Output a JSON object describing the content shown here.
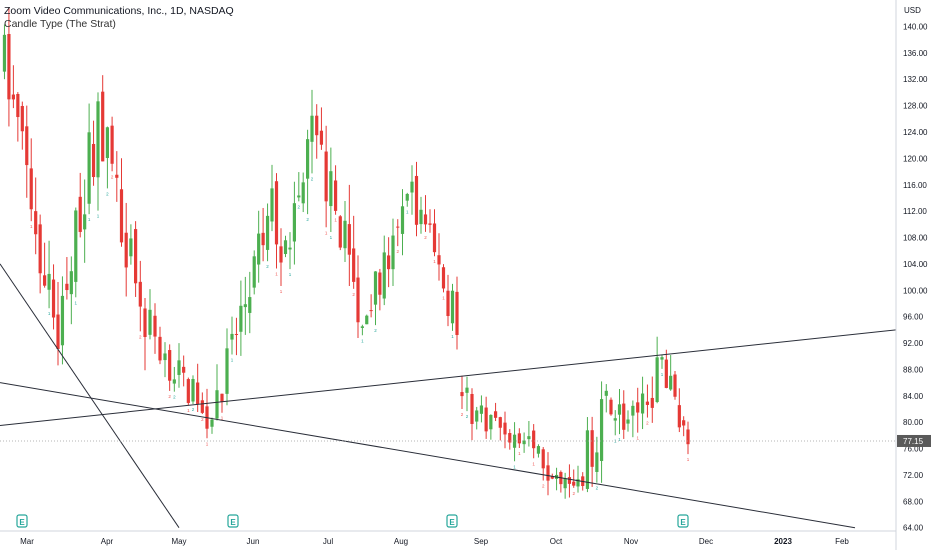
{
  "symbol": {
    "title": "Zoom Video Communications, Inc., 1D, NASDAQ",
    "candle_type": "Candle Type (The Strat)"
  },
  "colors": {
    "up": "#26a69a",
    "down": "#ef5350",
    "up_body": "#4caf50",
    "down_body": "#e53935",
    "line": "#2a2e39",
    "grid": "#ffffff",
    "price_tag": "#5a5a5a"
  },
  "chart_data": {
    "type": "candlestick",
    "title": "Zoom Video Communications, Inc., 1D, NASDAQ",
    "y_axis": {
      "unit": "USD",
      "ticks": [
        140,
        136,
        132,
        128,
        124,
        120,
        116,
        112,
        108,
        104,
        100,
        96,
        92,
        88,
        84,
        80,
        76,
        72,
        68,
        64
      ],
      "range": [
        63.5,
        142.5
      ],
      "position": "right"
    },
    "x_axis": {
      "ticks": [
        "Mar",
        "Apr",
        "May",
        "Jun",
        "Jul",
        "Aug",
        "Sep",
        "Oct",
        "Nov",
        "Dec",
        "2023",
        "Feb"
      ]
    },
    "last_price": "77.15",
    "earnings_markers": [
      "Feb",
      "May",
      "Aug",
      "Nov"
    ],
    "trendlines": [
      {
        "from": [
          "Feb",
          104.0
        ],
        "to": [
          "May",
          64.0
        ]
      },
      {
        "from": [
          "Feb",
          86.0
        ],
        "to": [
          "Feb 2023",
          64.0
        ]
      },
      {
        "from": [
          "Feb",
          79.5
        ],
        "to": [
          "Dec 2022",
          94.0
        ]
      }
    ],
    "segments": [
      {
        "from": "Feb",
        "to": "mid-Mar",
        "start": 137.5,
        "end": 94.0
      },
      {
        "from": "mid-Mar",
        "to": "late Mar",
        "start": 94.0,
        "end": 126.5
      },
      {
        "from": "late Mar",
        "to": "mid-Apr",
        "start": 126.5,
        "end": 96.0
      },
      {
        "from": "mid-Apr",
        "to": "early May",
        "start": 96.0,
        "end": 90.0
      },
      {
        "from": "early May",
        "to": "mid-May",
        "start": 90.0,
        "end": 81.0
      },
      {
        "from": "mid-May",
        "to": "late May",
        "start": 81.0,
        "end": 91.0
      },
      {
        "from": "late May",
        "to": "mid-Jun",
        "start": 91.0,
        "end": 112.0
      },
      {
        "from": "mid-Jun",
        "to": "late Jun",
        "start": 112.0,
        "end": 104.0
      },
      {
        "from": "late Jun",
        "to": "early Jul",
        "start": 104.0,
        "end": 123.0
      },
      {
        "from": "early Jul",
        "to": "mid-Jul",
        "start": 123.0,
        "end": 108.0
      },
      {
        "from": "mid-Jul",
        "to": "late Jul",
        "start": 108.0,
        "end": 96.0
      },
      {
        "from": "late Jul",
        "to": "early Aug",
        "start": 96.0,
        "end": 106.0
      },
      {
        "from": "early Aug",
        "to": "mid-Aug",
        "start": 106.0,
        "end": 114.0
      },
      {
        "from": "mid-Aug",
        "to": "late Aug",
        "start": 114.0,
        "end": 95.5
      },
      {
        "from": "late Aug",
        "to": "early Sep",
        "start": 85.0,
        "end": 82.0
      },
      {
        "from": "early Sep",
        "to": "mid-Sep",
        "start": 82.0,
        "end": 79.0
      },
      {
        "from": "mid-Sep",
        "to": "early Oct",
        "start": 79.0,
        "end": 73.5
      },
      {
        "from": "early Oct",
        "to": "mid-Oct",
        "start": 73.5,
        "end": 71.5
      },
      {
        "from": "mid-Oct",
        "to": "late Oct",
        "start": 71.5,
        "end": 84.0
      },
      {
        "from": "late Oct",
        "to": "early Nov",
        "start": 84.0,
        "end": 78.0
      },
      {
        "from": "early Nov",
        "to": "mid-Nov",
        "start": 78.0,
        "end": 88.5
      },
      {
        "from": "mid-Nov",
        "to": "late Nov",
        "start": 88.5,
        "end": 77.15
      }
    ]
  }
}
